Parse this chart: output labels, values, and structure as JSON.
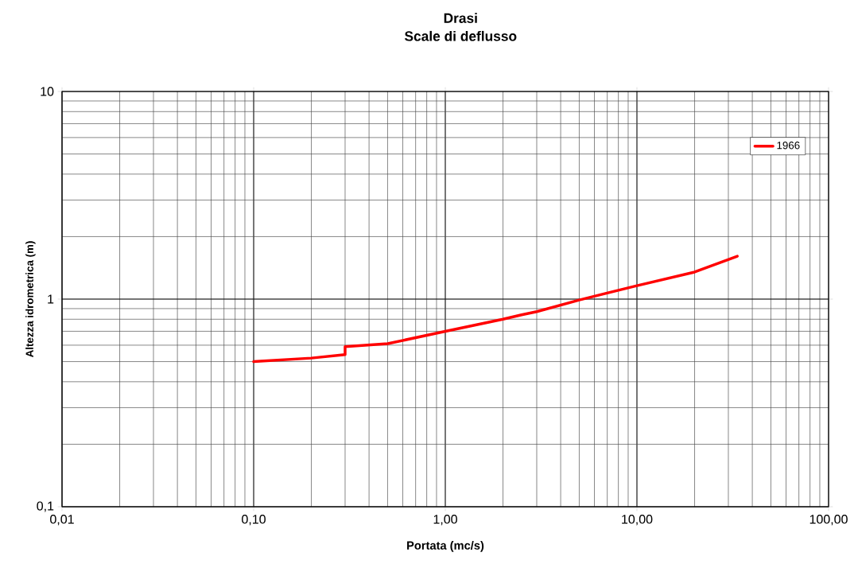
{
  "chart_data": {
    "type": "line",
    "title": "Drasi",
    "subtitle": "Scale di deflusso",
    "xlabel": "Portata (mc/s)",
    "ylabel": "Altezza idrometrica (m)",
    "log": "xy",
    "grid": true,
    "legend": "top right",
    "marker": "none",
    "line_style": "solid",
    "xlim": [
      0.01,
      100
    ],
    "ylim": [
      0.1,
      10
    ],
    "xticks": [
      {
        "value": 0.01,
        "label": "0,01"
      },
      {
        "value": 0.1,
        "label": "0,10"
      },
      {
        "value": 1,
        "label": "1,00"
      },
      {
        "value": 10,
        "label": "10,00"
      },
      {
        "value": 100,
        "label": "100,00"
      }
    ],
    "yticks": [
      {
        "value": 0.1,
        "label": "0,1"
      },
      {
        "value": 1,
        "label": "1"
      },
      {
        "value": 10,
        "label": "10"
      }
    ],
    "series": [
      {
        "name": "1966",
        "color": "#ff0000",
        "x": [
          0.1,
          0.2,
          0.3,
          0.3,
          0.5,
          1,
          2,
          2.5,
          3,
          5,
          10,
          20,
          33.4
        ],
        "values": [
          0.5,
          0.52,
          0.54,
          0.59,
          0.61,
          0.7,
          0.8,
          0.84,
          0.87,
          0.99,
          1.16,
          1.35,
          1.61
        ]
      }
    ]
  }
}
